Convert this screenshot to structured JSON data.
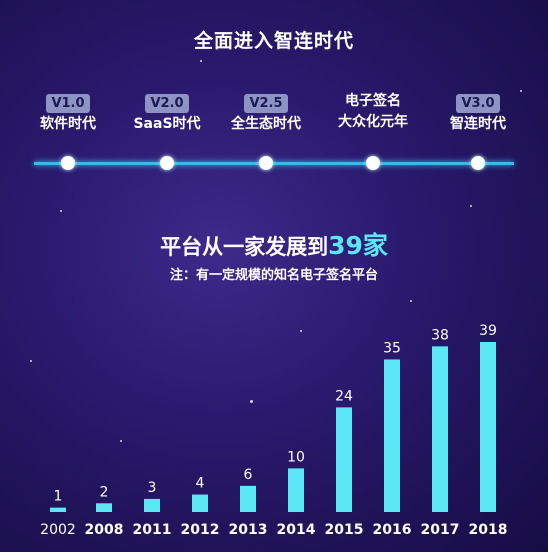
{
  "title": "全面进入智连时代",
  "timeline": [
    {
      "badge": "V1.0",
      "label": "软件时代"
    },
    {
      "badge": "V2.0",
      "label": "SaaS时代"
    },
    {
      "badge": "V2.5",
      "label": "全生态时代"
    },
    {
      "badge": "",
      "label": "电子签名",
      "label2": "大众化元年"
    },
    {
      "badge": "V3.0",
      "label": "智连时代"
    }
  ],
  "headline": {
    "prefix": "平台从一家发展到",
    "number": "39家"
  },
  "note": "注：有一定规模的知名电子签名平台",
  "colors": {
    "accent": "#5be8f5",
    "bar": "#5be8f5",
    "timeline": "#3fb6e8",
    "badge_bg": "#8d94c4"
  },
  "chart_data": {
    "type": "bar",
    "categories": [
      "2002",
      "2008",
      "2011",
      "2012",
      "2013",
      "2014",
      "2015",
      "2016",
      "2017",
      "2018"
    ],
    "values": [
      1,
      2,
      3,
      4,
      6,
      10,
      24,
      35,
      38,
      39
    ],
    "title": "",
    "xlabel": "",
    "ylabel": "",
    "ylim": [
      0,
      42
    ],
    "grid": false
  }
}
